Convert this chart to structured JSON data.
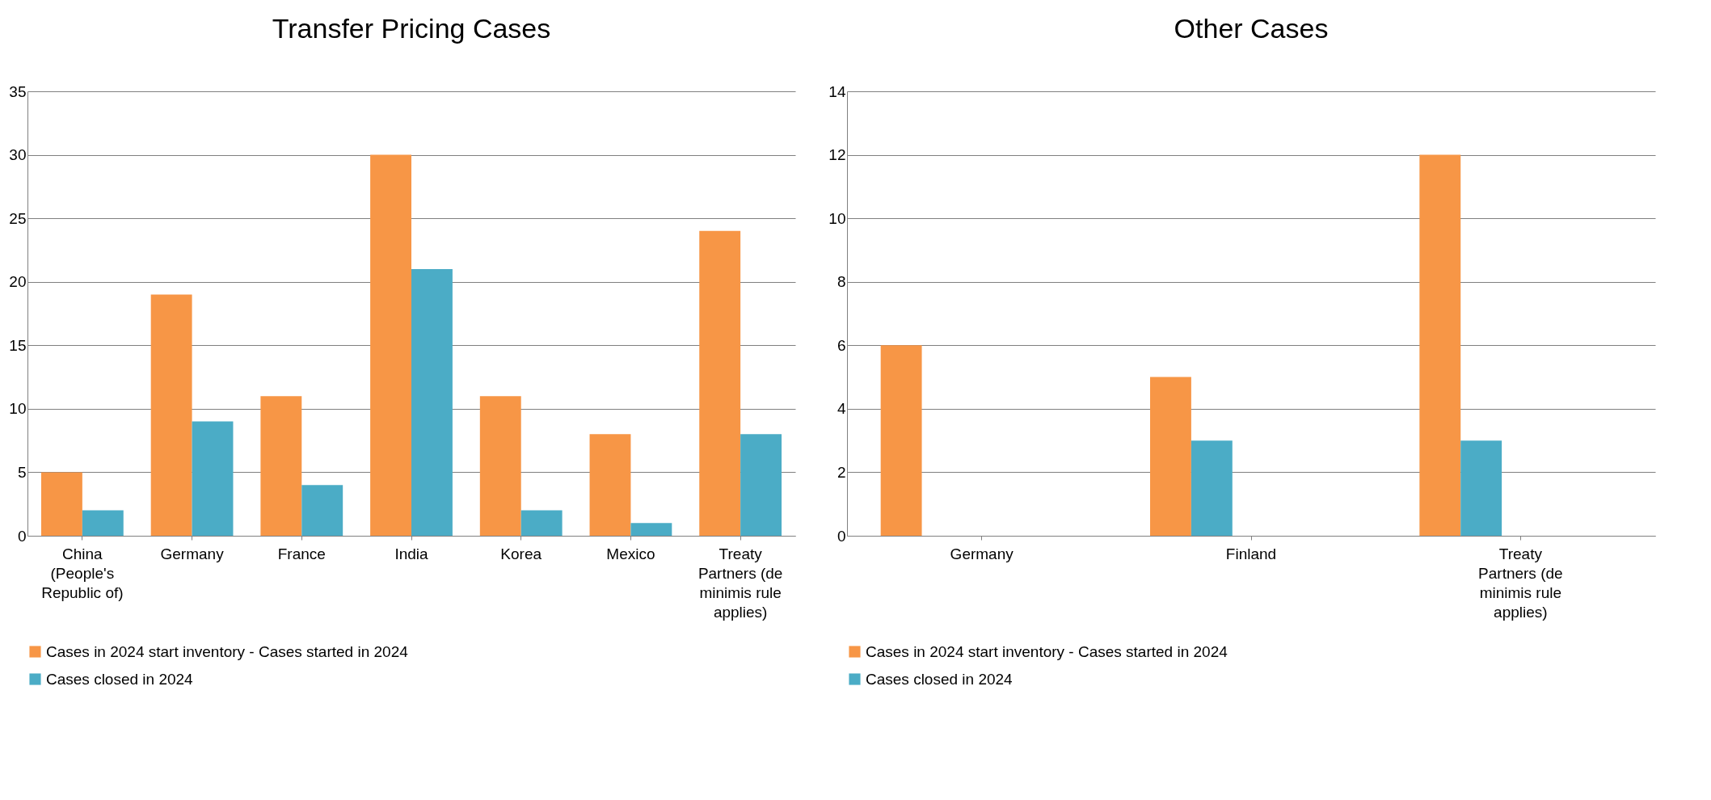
{
  "chart_data": [
    {
      "type": "bar",
      "title": "Transfer Pricing Cases",
      "categories": [
        "China (People's Republic of)",
        "Germany",
        "France",
        "India",
        "Korea",
        "Mexico",
        "Treaty Partners (de minimis rule applies)"
      ],
      "series": [
        {
          "name": "Cases in 2024 start inventory - Cases started in 2024",
          "color": "#f79646",
          "values": [
            5,
            19,
            11,
            30,
            11,
            8,
            24
          ]
        },
        {
          "name": "Cases closed in 2024",
          "color": "#4bacc6",
          "values": [
            2,
            9,
            4,
            21,
            2,
            1,
            8
          ]
        }
      ],
      "ylim": [
        0,
        35
      ],
      "yticks": [
        0,
        5,
        10,
        15,
        20,
        25,
        30,
        35
      ],
      "grid": "y",
      "legend": "bottom"
    },
    {
      "type": "bar",
      "title": "Other Cases",
      "categories": [
        "Germany",
        "Finland",
        "Treaty Partners (de minimis rule applies)"
      ],
      "series": [
        {
          "name": "Cases in 2024 start inventory - Cases started in 2024",
          "color": "#f79646",
          "values": [
            6,
            5,
            12
          ]
        },
        {
          "name": "Cases closed in 2024",
          "color": "#4bacc6",
          "values": [
            0,
            3,
            3
          ]
        }
      ],
      "ylim": [
        0,
        14
      ],
      "yticks": [
        0,
        2,
        4,
        6,
        8,
        10,
        12,
        14
      ],
      "grid": "y",
      "legend": "bottom"
    }
  ]
}
